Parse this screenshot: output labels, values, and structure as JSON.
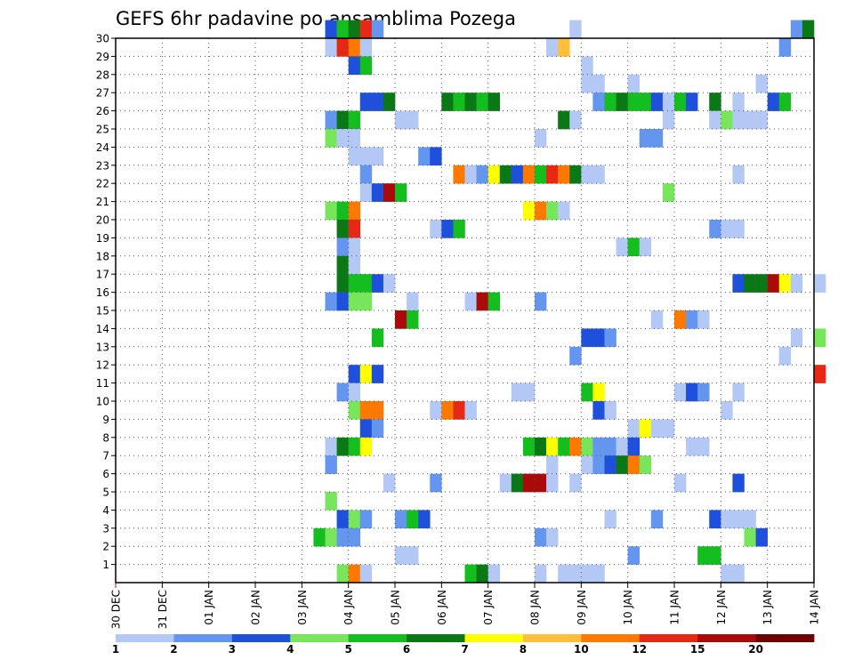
{
  "chart_data": {
    "type": "heatmap",
    "title": "GEFS 6hr padavine po ansamblima Pozega",
    "xlabel": "",
    "ylabel": "",
    "x_tick_labels": [
      "30 DEC",
      "31 DEC",
      "01 JAN",
      "02 JAN",
      "03 JAN",
      "04 JAN",
      "05 JAN",
      "06 JAN",
      "07 JAN",
      "08 JAN",
      "09 JAN",
      "10 JAN",
      "11 JAN",
      "12 JAN",
      "13 JAN",
      "14 JAN"
    ],
    "x_range_steps": [
      0,
      60
    ],
    "x_step_hours": 6,
    "y_tick_labels": [
      "1",
      "2",
      "3",
      "4",
      "5",
      "6",
      "7",
      "8",
      "9",
      "10",
      "11",
      "12",
      "13",
      "14",
      "15",
      "16",
      "17",
      "18",
      "19",
      "20",
      "21",
      "22",
      "23",
      "24",
      "25",
      "26",
      "27",
      "28",
      "29",
      "30"
    ],
    "y_range": [
      0,
      30
    ],
    "grid": true,
    "colorbar": {
      "labels": [
        "1",
        "2",
        "3",
        "4",
        "5",
        "6",
        "7",
        "8",
        "10",
        "12",
        "15",
        "20"
      ],
      "colors": [
        "#b4c8f5",
        "#6496f0",
        "#1e50dc",
        "#78e65a",
        "#14be1e",
        "#0a7814",
        "#ffff00",
        "#ffbe3c",
        "#ff7800",
        "#e62814",
        "#aa0a0a",
        "#6e0000"
      ]
    },
    "cells_note": "each cell = [time step index (6h steps from 30 DEC 00z), member 0-30, colour class 1-12]",
    "cells": [
      [
        18,
        30,
        3
      ],
      [
        19,
        30,
        5
      ],
      [
        20,
        30,
        6
      ],
      [
        21,
        30,
        10
      ],
      [
        22,
        30,
        2
      ],
      [
        39,
        30,
        1
      ],
      [
        58,
        30,
        2
      ],
      [
        59,
        30,
        6
      ],
      [
        18,
        29,
        1
      ],
      [
        19,
        29,
        10
      ],
      [
        20,
        29,
        9
      ],
      [
        21,
        29,
        1
      ],
      [
        37,
        29,
        1
      ],
      [
        38,
        29,
        8
      ],
      [
        57,
        29,
        2
      ],
      [
        20,
        28,
        3
      ],
      [
        21,
        28,
        5
      ],
      [
        40,
        28,
        1
      ],
      [
        40,
        27,
        1
      ],
      [
        41,
        27,
        1
      ],
      [
        44,
        27,
        1
      ],
      [
        55,
        27,
        1
      ],
      [
        21,
        26,
        3
      ],
      [
        22,
        26,
        3
      ],
      [
        23,
        26,
        6
      ],
      [
        28,
        26,
        6
      ],
      [
        29,
        26,
        5
      ],
      [
        30,
        26,
        6
      ],
      [
        31,
        26,
        5
      ],
      [
        32,
        26,
        6
      ],
      [
        41,
        26,
        2
      ],
      [
        42,
        26,
        5
      ],
      [
        43,
        26,
        6
      ],
      [
        44,
        26,
        5
      ],
      [
        45,
        26,
        5
      ],
      [
        46,
        26,
        3
      ],
      [
        47,
        26,
        1
      ],
      [
        48,
        26,
        5
      ],
      [
        49,
        26,
        3
      ],
      [
        51,
        26,
        6
      ],
      [
        53,
        26,
        1
      ],
      [
        56,
        26,
        3
      ],
      [
        57,
        26,
        5
      ],
      [
        18,
        25,
        2
      ],
      [
        19,
        25,
        6
      ],
      [
        20,
        25,
        5
      ],
      [
        24,
        25,
        1
      ],
      [
        25,
        25,
        1
      ],
      [
        38,
        25,
        6
      ],
      [
        39,
        25,
        1
      ],
      [
        47,
        25,
        1
      ],
      [
        51,
        25,
        1
      ],
      [
        52,
        25,
        4
      ],
      [
        53,
        25,
        1
      ],
      [
        54,
        25,
        1
      ],
      [
        55,
        25,
        1
      ],
      [
        18,
        24,
        4
      ],
      [
        19,
        24,
        1
      ],
      [
        20,
        24,
        1
      ],
      [
        36,
        24,
        1
      ],
      [
        45,
        24,
        2
      ],
      [
        46,
        24,
        2
      ],
      [
        20,
        23,
        1
      ],
      [
        21,
        23,
        1
      ],
      [
        22,
        23,
        1
      ],
      [
        26,
        23,
        2
      ],
      [
        27,
        23,
        3
      ],
      [
        21,
        22,
        2
      ],
      [
        29,
        22,
        9
      ],
      [
        30,
        22,
        1
      ],
      [
        31,
        22,
        2
      ],
      [
        32,
        22,
        7
      ],
      [
        33,
        22,
        6
      ],
      [
        34,
        22,
        3
      ],
      [
        35,
        22,
        9
      ],
      [
        36,
        22,
        5
      ],
      [
        37,
        22,
        10
      ],
      [
        38,
        22,
        9
      ],
      [
        39,
        22,
        6
      ],
      [
        40,
        22,
        1
      ],
      [
        41,
        22,
        1
      ],
      [
        53,
        22,
        1
      ],
      [
        21,
        21,
        1
      ],
      [
        22,
        21,
        3
      ],
      [
        23,
        21,
        11
      ],
      [
        24,
        21,
        5
      ],
      [
        47,
        21,
        4
      ],
      [
        18,
        20,
        4
      ],
      [
        19,
        20,
        5
      ],
      [
        20,
        20,
        9
      ],
      [
        35,
        20,
        7
      ],
      [
        36,
        20,
        9
      ],
      [
        37,
        20,
        4
      ],
      [
        38,
        20,
        1
      ],
      [
        19,
        19,
        6
      ],
      [
        20,
        19,
        10
      ],
      [
        27,
        19,
        1
      ],
      [
        28,
        19,
        3
      ],
      [
        29,
        19,
        5
      ],
      [
        51,
        19,
        2
      ],
      [
        52,
        19,
        1
      ],
      [
        53,
        19,
        1
      ],
      [
        19,
        18,
        2
      ],
      [
        20,
        18,
        1
      ],
      [
        43,
        18,
        1
      ],
      [
        44,
        18,
        5
      ],
      [
        45,
        18,
        1
      ],
      [
        19,
        17,
        6
      ],
      [
        20,
        17,
        1
      ],
      [
        19,
        16,
        6
      ],
      [
        20,
        16,
        5
      ],
      [
        21,
        16,
        5
      ],
      [
        22,
        16,
        3
      ],
      [
        23,
        16,
        1
      ],
      [
        18,
        15,
        2
      ],
      [
        19,
        15,
        3
      ],
      [
        20,
        15,
        4
      ],
      [
        21,
        15,
        4
      ],
      [
        25,
        15,
        1
      ],
      [
        30,
        15,
        1
      ],
      [
        31,
        15,
        11
      ],
      [
        32,
        15,
        5
      ],
      [
        36,
        15,
        2
      ],
      [
        53,
        16,
        3
      ],
      [
        54,
        16,
        6
      ],
      [
        55,
        16,
        6
      ],
      [
        56,
        16,
        11
      ],
      [
        57,
        16,
        7
      ],
      [
        58,
        16,
        1
      ],
      [
        60,
        16,
        1
      ],
      [
        24,
        14,
        11
      ],
      [
        25,
        14,
        5
      ],
      [
        46,
        14,
        1
      ],
      [
        48,
        14,
        9
      ],
      [
        49,
        14,
        2
      ],
      [
        50,
        14,
        1
      ],
      [
        22,
        13,
        5
      ],
      [
        40,
        13,
        3
      ],
      [
        41,
        13,
        3
      ],
      [
        42,
        13,
        2
      ],
      [
        58,
        13,
        1
      ],
      [
        60,
        13,
        4
      ],
      [
        39,
        12,
        2
      ],
      [
        57,
        12,
        1
      ],
      [
        20,
        11,
        3
      ],
      [
        21,
        11,
        7
      ],
      [
        22,
        11,
        3
      ],
      [
        60,
        11,
        10
      ],
      [
        19,
        10,
        2
      ],
      [
        20,
        10,
        1
      ],
      [
        34,
        10,
        1
      ],
      [
        35,
        10,
        1
      ],
      [
        40,
        10,
        5
      ],
      [
        41,
        10,
        7
      ],
      [
        48,
        10,
        1
      ],
      [
        49,
        10,
        3
      ],
      [
        50,
        10,
        2
      ],
      [
        53,
        10,
        1
      ],
      [
        20,
        9,
        4
      ],
      [
        21,
        9,
        9
      ],
      [
        22,
        9,
        9
      ],
      [
        27,
        9,
        1
      ],
      [
        28,
        9,
        9
      ],
      [
        29,
        9,
        10
      ],
      [
        30,
        9,
        1
      ],
      [
        41,
        9,
        3
      ],
      [
        42,
        9,
        1
      ],
      [
        52,
        9,
        1
      ],
      [
        21,
        8,
        3
      ],
      [
        22,
        8,
        2
      ],
      [
        44,
        8,
        1
      ],
      [
        45,
        8,
        7
      ],
      [
        46,
        8,
        1
      ],
      [
        47,
        8,
        1
      ],
      [
        18,
        7,
        1
      ],
      [
        19,
        7,
        6
      ],
      [
        20,
        7,
        5
      ],
      [
        21,
        7,
        7
      ],
      [
        35,
        7,
        5
      ],
      [
        36,
        7,
        6
      ],
      [
        37,
        7,
        7
      ],
      [
        38,
        7,
        5
      ],
      [
        39,
        7,
        9
      ],
      [
        40,
        7,
        4
      ],
      [
        41,
        7,
        2
      ],
      [
        42,
        7,
        2
      ],
      [
        43,
        7,
        1
      ],
      [
        44,
        7,
        3
      ],
      [
        49,
        7,
        1
      ],
      [
        50,
        7,
        1
      ],
      [
        18,
        6,
        2
      ],
      [
        37,
        6,
        1
      ],
      [
        40,
        6,
        1
      ],
      [
        41,
        6,
        2
      ],
      [
        42,
        6,
        3
      ],
      [
        43,
        6,
        6
      ],
      [
        44,
        6,
        9
      ],
      [
        45,
        6,
        4
      ],
      [
        23,
        5,
        1
      ],
      [
        27,
        5,
        2
      ],
      [
        33,
        5,
        1
      ],
      [
        34,
        5,
        6
      ],
      [
        35,
        5,
        11
      ],
      [
        36,
        5,
        11
      ],
      [
        37,
        5,
        1
      ],
      [
        39,
        5,
        1
      ],
      [
        48,
        5,
        1
      ],
      [
        53,
        5,
        3
      ],
      [
        18,
        4,
        4
      ],
      [
        19,
        3,
        3
      ],
      [
        20,
        3,
        4
      ],
      [
        21,
        3,
        2
      ],
      [
        24,
        3,
        2
      ],
      [
        25,
        3,
        5
      ],
      [
        26,
        3,
        3
      ],
      [
        42,
        3,
        1
      ],
      [
        46,
        3,
        2
      ],
      [
        51,
        3,
        3
      ],
      [
        52,
        3,
        1
      ],
      [
        53,
        3,
        1
      ],
      [
        54,
        3,
        1
      ],
      [
        17,
        2,
        5
      ],
      [
        18,
        2,
        4
      ],
      [
        19,
        2,
        2
      ],
      [
        20,
        2,
        2
      ],
      [
        36,
        2,
        2
      ],
      [
        37,
        2,
        1
      ],
      [
        54,
        2,
        4
      ],
      [
        55,
        2,
        3
      ],
      [
        24,
        1,
        1
      ],
      [
        25,
        1,
        1
      ],
      [
        44,
        1,
        2
      ],
      [
        50,
        1,
        5
      ],
      [
        51,
        1,
        5
      ],
      [
        19,
        0,
        4
      ],
      [
        20,
        0,
        9
      ],
      [
        21,
        0,
        1
      ],
      [
        30,
        0,
        5
      ],
      [
        31,
        0,
        6
      ],
      [
        32,
        0,
        1
      ],
      [
        36,
        0,
        1
      ],
      [
        38,
        0,
        1
      ],
      [
        39,
        0,
        1
      ],
      [
        40,
        0,
        1
      ],
      [
        41,
        0,
        1
      ],
      [
        52,
        0,
        1
      ],
      [
        53,
        0,
        1
      ]
    ]
  }
}
